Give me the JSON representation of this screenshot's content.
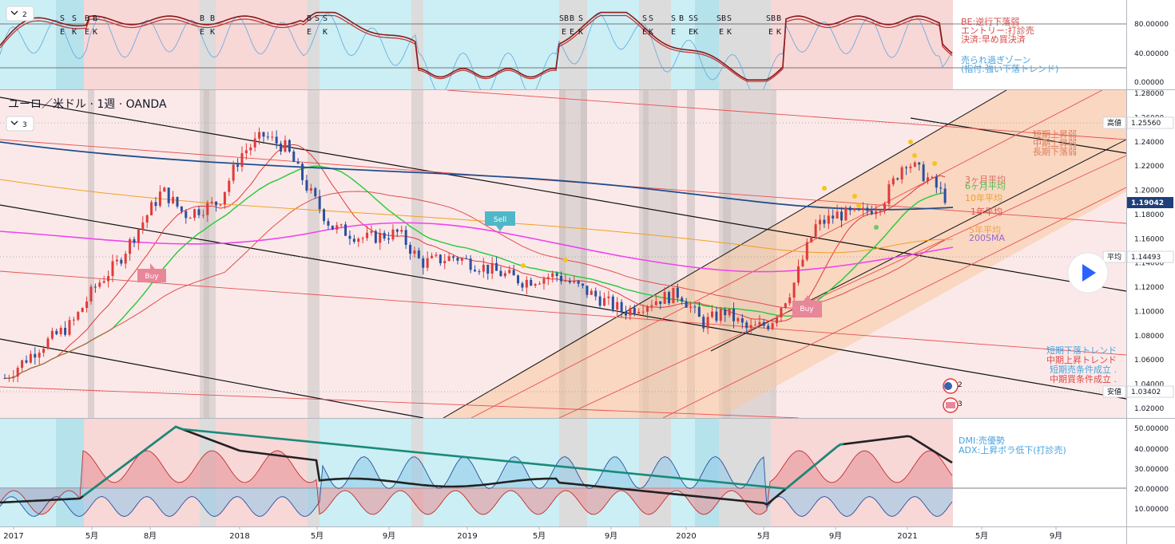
{
  "header": {
    "title": "ユーロ／米ドル · 1週 · OANDA",
    "pane_top_index": "2",
    "pane_main_index": "3"
  },
  "colors": {
    "bull": "#e03a3a",
    "bear": "#2a4f9e",
    "ma3m": "#e23a3a",
    "ma6m": "#2ecc40",
    "ma10y": "#f0a020",
    "ma1y": "#e05050",
    "ma5y": "#f4a040",
    "sma200": "#ee44ee",
    "long_ma": "#1f4e8c",
    "pink_zone": "#f7d0d0",
    "cyan_zone": "#c2ecf2",
    "gray_zone": "#d6d6d6"
  },
  "stoch_pane": {
    "y_ticks": [
      "80.00000",
      "40.00000",
      "0.00000"
    ],
    "legend": [
      {
        "text": "BE:逆行下落弱",
        "color": "#d94a4a"
      },
      {
        "text": "エントリー:打診売",
        "color": "#d94a4a"
      },
      {
        "text": "決済:早め買決済",
        "color": "#d94a4a"
      },
      {
        "text": "売られ過ぎゾーン",
        "color": "#4aa3df"
      },
      {
        "text": "(指付:強い下落トレンド)",
        "color": "#4aa3df"
      }
    ],
    "signals": [
      {
        "top": "S",
        "bottom": "E",
        "x": 78
      },
      {
        "top": "S",
        "bottom": "K",
        "x": 93
      },
      {
        "top": "B",
        "bottom": "E",
        "x": 109
      },
      {
        "top": "B",
        "bottom": "K",
        "x": 119
      },
      {
        "top": "B",
        "bottom": "E",
        "x": 253
      },
      {
        "top": "B",
        "bottom": "K",
        "x": 266
      },
      {
        "top": "B",
        "bottom": "E",
        "x": 387
      },
      {
        "top": "S",
        "bottom": "",
        "x": 397
      },
      {
        "top": "S",
        "bottom": "K",
        "x": 407
      },
      {
        "top": "SB",
        "bottom": "E",
        "x": 706
      },
      {
        "top": "B",
        "bottom": "E",
        "x": 716
      },
      {
        "top": "S",
        "bottom": "K",
        "x": 727
      },
      {
        "top": "S",
        "bottom": "E",
        "x": 807
      },
      {
        "top": "S",
        "bottom": "K",
        "x": 815
      },
      {
        "top": "S",
        "bottom": "E",
        "x": 843
      },
      {
        "top": "B",
        "bottom": "",
        "x": 853
      },
      {
        "top": "S",
        "bottom": "E",
        "x": 865
      },
      {
        "top": "S",
        "bottom": "K",
        "x": 871
      },
      {
        "top": "SB",
        "bottom": "E",
        "x": 903
      },
      {
        "top": "S",
        "bottom": "K",
        "x": 913
      },
      {
        "top": "SB",
        "bottom": "E",
        "x": 965
      },
      {
        "top": "B",
        "bottom": "K",
        "x": 975
      }
    ]
  },
  "main_pane": {
    "y_ticks": [
      "1.28000",
      "1.26000",
      "1.24000",
      "1.22000",
      "1.20000",
      "1.18000",
      "1.16000",
      "1.14000",
      "1.12000",
      "1.10000",
      "1.08000",
      "1.06000",
      "1.04000",
      "1.02000"
    ],
    "price_tags": [
      {
        "label": "高値",
        "value": "1.25560"
      },
      {
        "label": "",
        "value": "1.19042"
      },
      {
        "label": "平均",
        "value": "1.14493"
      },
      {
        "label": "安値",
        "value": "1.03402"
      }
    ],
    "legend_top_right": [
      {
        "text": "短期上昇弱",
        "color": "#e07a5a"
      },
      {
        "text": "中期上昇弱",
        "color": "#e07a5a"
      },
      {
        "text": "長期下落弱",
        "color": "#e07a5a"
      }
    ],
    "ma_labels": [
      {
        "text": "3ヶ月平均",
        "color": "#d07060"
      },
      {
        "text": "6ヶ月平均",
        "color": "#4cbb4c"
      },
      {
        "text": "10年平均",
        "color": "#f0a020"
      },
      {
        "text": "1年平均",
        "color": "#e05050"
      },
      {
        "text": "5年平均",
        "color": "#f4a040"
      },
      {
        "text": "200SMA",
        "color": "#9966cc"
      }
    ],
    "legend_bottom_right": [
      {
        "text": "短期下落トレンド",
        "color": "#4aa3df"
      },
      {
        "text": "中期上昇トレンド",
        "color": "#d94a4a"
      },
      {
        "text": "短期売条件成立 .",
        "color": "#4aa3df"
      },
      {
        "text": "中期買条件成立 .",
        "color": "#d94a4a"
      }
    ],
    "tags": {
      "buy1": "Buy",
      "sell": "Sell",
      "buy2": "Buy"
    },
    "event_markers": [
      "2",
      "3"
    ]
  },
  "dmi_pane": {
    "y_ticks": [
      "50.00000",
      "40.00000",
      "30.00000",
      "20.00000",
      "10.00000"
    ],
    "legend": [
      {
        "text": "DMI:売優勢",
        "color": "#4aa3df"
      },
      {
        "text": "ADX:上昇ボラ低下(打診売)",
        "color": "#4aa3df"
      }
    ]
  },
  "x_axis": {
    "labels": [
      "2017",
      "5月",
      "8月",
      "2018",
      "5月",
      "9月",
      "2019",
      "5月",
      "9月",
      "2020",
      "5月",
      "9月",
      "2021",
      "5月",
      "9月"
    ]
  },
  "chart_data": {
    "type": "candlestick",
    "title": "ユーロ／米ドル · 1週 · OANDA",
    "ylim": [
      1.01,
      1.28
    ],
    "high_label": 1.2556,
    "last_price": 1.19042,
    "average_label": 1.14493,
    "low_label": 1.03402,
    "price_path": [
      [
        2017.0,
        1.045
      ],
      [
        2017.15,
        1.07
      ],
      [
        2017.3,
        1.09
      ],
      [
        2017.4,
        1.12
      ],
      [
        2017.5,
        1.14
      ],
      [
        2017.6,
        1.17
      ],
      [
        2017.7,
        1.2
      ],
      [
        2017.8,
        1.18
      ],
      [
        2017.95,
        1.19
      ],
      [
        2018.05,
        1.23
      ],
      [
        2018.15,
        1.245
      ],
      [
        2018.25,
        1.235
      ],
      [
        2018.35,
        1.2
      ],
      [
        2018.45,
        1.17
      ],
      [
        2018.6,
        1.16
      ],
      [
        2018.75,
        1.165
      ],
      [
        2018.85,
        1.14
      ],
      [
        2019.0,
        1.145
      ],
      [
        2019.15,
        1.135
      ],
      [
        2019.3,
        1.125
      ],
      [
        2019.45,
        1.13
      ],
      [
        2019.6,
        1.115
      ],
      [
        2019.75,
        1.1
      ],
      [
        2019.9,
        1.11
      ],
      [
        2020.0,
        1.115
      ],
      [
        2020.1,
        1.09
      ],
      [
        2020.2,
        1.1
      ],
      [
        2020.3,
        1.085
      ],
      [
        2020.4,
        1.09
      ],
      [
        2020.5,
        1.12
      ],
      [
        2020.6,
        1.17
      ],
      [
        2020.7,
        1.18
      ],
      [
        2020.8,
        1.18
      ],
      [
        2020.9,
        1.19
      ],
      [
        2021.0,
        1.225
      ],
      [
        2021.1,
        1.21
      ],
      [
        2021.2,
        1.19
      ]
    ],
    "series": [
      {
        "name": "3ヶ月平均"
      },
      {
        "name": "6ヶ月平均"
      },
      {
        "name": "10年平均"
      },
      {
        "name": "1年平均"
      },
      {
        "name": "5年平均"
      },
      {
        "name": "200SMA"
      }
    ]
  }
}
